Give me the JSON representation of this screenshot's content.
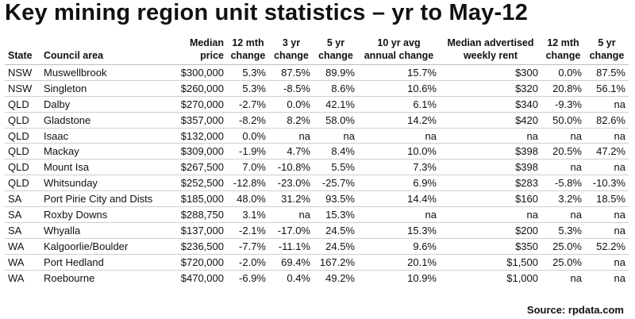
{
  "title": "Key mining region unit statistics – yr to May-12",
  "columns": [
    {
      "line1": "",
      "line2": "State",
      "align": "l"
    },
    {
      "line1": "",
      "line2": "Council area",
      "align": "l"
    },
    {
      "line1": "Median",
      "line2": "price",
      "align": "r"
    },
    {
      "line1": "12 mth",
      "line2": "change",
      "align": "c"
    },
    {
      "line1": "3 yr",
      "line2": "change",
      "align": "c"
    },
    {
      "line1": "5 yr",
      "line2": "change",
      "align": "c"
    },
    {
      "line1": "10 yr avg",
      "line2": "annual change",
      "align": "c"
    },
    {
      "line1": "Median advertised",
      "line2": "weekly rent",
      "align": "c"
    },
    {
      "line1": "12 mth",
      "line2": "change",
      "align": "c"
    },
    {
      "line1": "5 yr",
      "line2": "change",
      "align": "c"
    }
  ],
  "rows": [
    [
      "NSW",
      "Muswellbrook",
      "$300,000",
      "5.3%",
      "87.5%",
      "89.9%",
      "15.7%",
      "$300",
      "0.0%",
      "87.5%"
    ],
    [
      "NSW",
      "Singleton",
      "$260,000",
      "5.3%",
      "-8.5%",
      "8.6%",
      "10.6%",
      "$320",
      "20.8%",
      "56.1%"
    ],
    [
      "QLD",
      "Dalby",
      "$270,000",
      "-2.7%",
      "0.0%",
      "42.1%",
      "6.1%",
      "$340",
      "-9.3%",
      "na"
    ],
    [
      "QLD",
      "Gladstone",
      "$357,000",
      "-8.2%",
      "8.2%",
      "58.0%",
      "14.2%",
      "$420",
      "50.0%",
      "82.6%"
    ],
    [
      "QLD",
      "Isaac",
      "$132,000",
      "0.0%",
      "na",
      "na",
      "na",
      "na",
      "na",
      "na"
    ],
    [
      "QLD",
      "Mackay",
      "$309,000",
      "-1.9%",
      "4.7%",
      "8.4%",
      "10.0%",
      "$398",
      "20.5%",
      "47.2%"
    ],
    [
      "QLD",
      "Mount Isa",
      "$267,500",
      "7.0%",
      "-10.8%",
      "5.5%",
      "7.3%",
      "$398",
      "na",
      "na"
    ],
    [
      "QLD",
      "Whitsunday",
      "$252,500",
      "-12.8%",
      "-23.0%",
      "-25.7%",
      "6.9%",
      "$283",
      "-5.8%",
      "-10.3%"
    ],
    [
      "SA",
      "Port Pirie City and Dists",
      "$185,000",
      "48.0%",
      "31.2%",
      "93.5%",
      "14.4%",
      "$160",
      "3.2%",
      "18.5%"
    ],
    [
      "SA",
      "Roxby Downs",
      "$288,750",
      "3.1%",
      "na",
      "15.3%",
      "na",
      "na",
      "na",
      "na"
    ],
    [
      "SA",
      "Whyalla",
      "$137,000",
      "-2.1%",
      "-17.0%",
      "24.5%",
      "15.3%",
      "$200",
      "5.3%",
      "na"
    ],
    [
      "WA",
      "Kalgoorlie/Boulder",
      "$236,500",
      "-7.7%",
      "-11.1%",
      "24.5%",
      "9.6%",
      "$350",
      "25.0%",
      "52.2%"
    ],
    [
      "WA",
      "Port Hedland",
      "$720,000",
      "-2.0%",
      "69.4%",
      "167.2%",
      "20.1%",
      "$1,500",
      "25.0%",
      "na"
    ],
    [
      "WA",
      "Roebourne",
      "$470,000",
      "-6.9%",
      "0.4%",
      "49.2%",
      "10.9%",
      "$1,000",
      "na",
      "na"
    ]
  ],
  "source": "Source: rpdata.com"
}
